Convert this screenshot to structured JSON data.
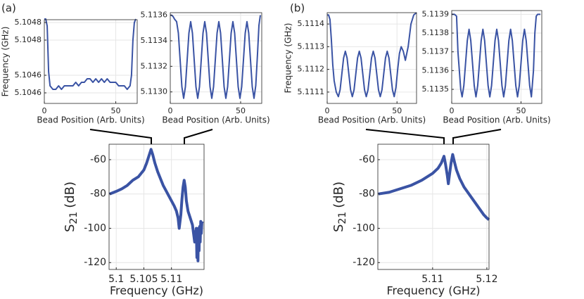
{
  "chart_data": [
    {
      "type": "line",
      "panel": "(a)",
      "xlabel": "Bead Position (Arb. Units)",
      "ylabel": "Frequency (GHz)",
      "color": "#3a53a4",
      "grid": true,
      "xlim": [
        0,
        65
      ],
      "xticks": [
        0,
        50
      ],
      "ylim": [
        5.10457,
        5.104808
      ],
      "yticks": [
        {
          "value": 5.1046,
          "label": "5.1046"
        },
        {
          "value": 5.10465,
          "label": "5.1046"
        },
        {
          "value": 5.10475,
          "label": "5.1048"
        },
        {
          "value": 5.1048,
          "label": "5.1048"
        }
      ],
      "x": [
        0,
        1,
        2,
        3,
        4,
        6,
        8,
        10,
        12,
        14,
        16,
        18,
        20,
        22,
        24,
        26,
        28,
        30,
        32,
        34,
        36,
        38,
        40,
        42,
        44,
        46,
        48,
        50,
        52,
        54,
        56,
        58,
        60,
        61,
        62,
        63,
        64
      ],
      "values": [
        5.10481,
        5.10481,
        5.10479,
        5.10466,
        5.10462,
        5.10461,
        5.10461,
        5.10462,
        5.10461,
        5.10462,
        5.10462,
        5.10462,
        5.10462,
        5.10463,
        5.10462,
        5.10463,
        5.10463,
        5.10464,
        5.10464,
        5.10463,
        5.10464,
        5.10463,
        5.10464,
        5.10463,
        5.10464,
        5.10463,
        5.10463,
        5.10463,
        5.10462,
        5.10462,
        5.10462,
        5.10461,
        5.10462,
        5.10465,
        5.10475,
        5.1048,
        5.10481
      ]
    },
    {
      "type": "line",
      "xlabel": "Bead Position (Arb. Units)",
      "color": "#3a53a4",
      "grid": true,
      "xlim": [
        0,
        65
      ],
      "xticks": [
        0,
        50
      ],
      "ylim": [
        5.11291,
        5.11362
      ],
      "yticks": [
        {
          "value": 5.113,
          "label": "5.1130"
        },
        5.1132,
        5.1134,
        5.1136
      ],
      "x": [
        0,
        1,
        2,
        3,
        4.5,
        5.75,
        7,
        8.25,
        9.5,
        10.75,
        12,
        13.25,
        14.5,
        15.75,
        17,
        18.25,
        19.5,
        20.75,
        22,
        23.25,
        24.5,
        25.75,
        27,
        28.25,
        29.5,
        30.75,
        32,
        33.25,
        34.5,
        35.75,
        37,
        38.25,
        39.5,
        40.75,
        42,
        43.25,
        44.5,
        45.75,
        47,
        48.25,
        49.5,
        50.75,
        52,
        53.25,
        54.5,
        55.75,
        57,
        58.25,
        59.5,
        60.75,
        62,
        63,
        64
      ],
      "values": [
        5.1136,
        5.1136,
        5.11359,
        5.11357,
        5.11355,
        5.11346,
        5.11325,
        5.11304,
        5.11295,
        5.11304,
        5.11325,
        5.11346,
        5.11355,
        5.11346,
        5.11325,
        5.11304,
        5.11295,
        5.11304,
        5.11325,
        5.11346,
        5.11355,
        5.11346,
        5.11325,
        5.11304,
        5.11295,
        5.11304,
        5.11325,
        5.11346,
        5.11355,
        5.11346,
        5.11325,
        5.11304,
        5.11295,
        5.11304,
        5.11325,
        5.11346,
        5.11355,
        5.11346,
        5.11325,
        5.11304,
        5.11295,
        5.11304,
        5.11325,
        5.11346,
        5.11355,
        5.11346,
        5.11325,
        5.11304,
        5.11295,
        5.11305,
        5.1133,
        5.11352,
        5.1136
      ]
    },
    {
      "type": "line",
      "panel": "(b)",
      "xlabel": "Bead Position (Arb. Units)",
      "ylabel": "Frequency (GHz)",
      "color": "#3a53a4",
      "grid": true,
      "xlim": [
        0,
        64
      ],
      "xticks": [
        0,
        50
      ],
      "ylim": [
        5.11105,
        5.11145
      ],
      "yticks": [
        5.1111,
        5.1112,
        5.1113,
        5.1114
      ],
      "x": [
        0,
        1,
        2,
        3,
        4,
        5,
        6.5,
        8,
        9.25,
        10.5,
        11.75,
        13,
        14.25,
        15.5,
        16.75,
        18,
        19.25,
        20.5,
        21.75,
        23,
        24.25,
        25.5,
        26.75,
        28,
        29.25,
        30.5,
        31.75,
        33,
        34.25,
        35.5,
        36.75,
        38,
        39.25,
        40.5,
        41.75,
        43,
        44.25,
        45.5,
        46.75,
        48,
        49.25,
        50.5,
        51.75,
        53,
        54.5,
        56,
        58,
        60,
        62,
        64
      ],
      "values": [
        5.11144,
        5.11144,
        5.11142,
        5.11133,
        5.11122,
        5.11115,
        5.1111,
        5.11108,
        5.11111,
        5.11118,
        5.11125,
        5.11128,
        5.11125,
        5.11118,
        5.11111,
        5.11108,
        5.11111,
        5.11118,
        5.11125,
        5.11128,
        5.11125,
        5.11118,
        5.11111,
        5.11108,
        5.11111,
        5.11118,
        5.11125,
        5.11128,
        5.11125,
        5.11118,
        5.11111,
        5.11108,
        5.11111,
        5.11118,
        5.11125,
        5.11128,
        5.11125,
        5.11118,
        5.11111,
        5.11108,
        5.11112,
        5.1112,
        5.11127,
        5.1113,
        5.11128,
        5.11124,
        5.1113,
        5.1114,
        5.11144,
        5.11145
      ]
    },
    {
      "type": "line",
      "xlabel": "Bead Position (Arb. Units)",
      "color": "#3a53a4",
      "grid": true,
      "xlim": [
        0,
        65
      ],
      "xticks": [
        0,
        50
      ],
      "ylim": [
        5.113425,
        5.11392
      ],
      "yticks": [
        5.1135,
        5.1136,
        5.1137,
        5.1138,
        5.1139
      ],
      "x": [
        0,
        2,
        3.5,
        4.5,
        5.5,
        6.5,
        7.5,
        8.75,
        10,
        11.25,
        12.5,
        13.75,
        15,
        16.25,
        17.5,
        18.75,
        20,
        21.25,
        22.5,
        23.75,
        25,
        26.25,
        27.5,
        28.75,
        30,
        31.25,
        32.5,
        33.75,
        35,
        36.25,
        37.5,
        38.75,
        40,
        41.25,
        42.5,
        43.75,
        45,
        46.25,
        47.5,
        48.75,
        50,
        51.25,
        52.5,
        53.75,
        55,
        56.25,
        57.5,
        59,
        60,
        61,
        62,
        64
      ],
      "values": [
        5.1139,
        5.1139,
        5.11389,
        5.1137,
        5.1136,
        5.1135,
        5.11346,
        5.11352,
        5.11364,
        5.11376,
        5.11382,
        5.11376,
        5.11364,
        5.11352,
        5.11346,
        5.11352,
        5.11364,
        5.11376,
        5.11382,
        5.11376,
        5.11364,
        5.11352,
        5.11346,
        5.11352,
        5.11364,
        5.11376,
        5.11382,
        5.11376,
        5.11364,
        5.11352,
        5.11346,
        5.11352,
        5.11364,
        5.11376,
        5.11382,
        5.11376,
        5.11364,
        5.11352,
        5.11346,
        5.11352,
        5.11364,
        5.11376,
        5.11382,
        5.11376,
        5.11364,
        5.11352,
        5.11346,
        5.1136,
        5.1138,
        5.11389,
        5.1139,
        5.1139
      ]
    },
    {
      "type": "line",
      "xlabel": "Frequency (GHz)",
      "ylabel": [
        "S",
        "21",
        "(dB)"
      ],
      "color": "#3a53a4",
      "grid": true,
      "xlim": [
        5.0987,
        5.1159
      ],
      "xticks": [
        5.1,
        5.105,
        5.11
      ],
      "ylim": [
        -124,
        -51
      ],
      "yticks": [
        -120,
        -100,
        -80,
        -60
      ],
      "x": [
        5.0988,
        5.1,
        5.101,
        5.102,
        5.103,
        5.104,
        5.105,
        5.1055,
        5.106,
        5.1063,
        5.1066,
        5.107,
        5.1075,
        5.108,
        5.1085,
        5.109,
        5.1095,
        5.11,
        5.1105,
        5.1109,
        5.1112,
        5.1114,
        5.1117,
        5.1119,
        5.1121,
        5.1123,
        5.1125,
        5.1127,
        5.113,
        5.1134,
        5.1138,
        5.1142,
        5.1145,
        5.1146,
        5.1147,
        5.1148,
        5.1149,
        5.115,
        5.1151,
        5.1152,
        5.1153,
        5.1154,
        5.1155,
        5.1156
      ],
      "values": [
        -80,
        -78.5,
        -77,
        -75,
        -72,
        -70,
        -66,
        -62,
        -57,
        -54,
        -57,
        -62,
        -67,
        -71,
        -75,
        -78,
        -81,
        -84,
        -87,
        -90,
        -94,
        -100,
        -92,
        -83,
        -76,
        -72,
        -76,
        -84,
        -90,
        -94,
        -98,
        -108,
        -100,
        -117,
        -106,
        -119,
        -100,
        -113,
        -99,
        -108,
        -96,
        -103,
        -97,
        -96
      ]
    },
    {
      "type": "line",
      "xlabel": "Frequency (GHz)",
      "ylabel": [
        "S",
        "21",
        "(dB)"
      ],
      "color": "#3a53a4",
      "grid": true,
      "xlim": [
        5.0999,
        5.1204
      ],
      "xticks": [
        5.11,
        5.12
      ],
      "ylim": [
        -124,
        -51
      ],
      "yticks": [
        -120,
        -100,
        -80,
        -60
      ],
      "x": [
        5.1,
        5.102,
        5.104,
        5.106,
        5.108,
        5.11,
        5.111,
        5.1116,
        5.1121,
        5.1124,
        5.1127,
        5.1129,
        5.1131,
        5.1134,
        5.1137,
        5.114,
        5.1144,
        5.115,
        5.1158,
        5.1167,
        5.1176,
        5.1185,
        5.1194,
        5.12,
        5.1204
      ],
      "values": [
        -80,
        -79,
        -77,
        -75,
        -72,
        -68,
        -65,
        -62,
        -58,
        -63,
        -69,
        -74,
        -69,
        -62,
        -57,
        -61,
        -66,
        -71,
        -76,
        -80,
        -84,
        -88,
        -92,
        -94,
        -95
      ]
    }
  ]
}
